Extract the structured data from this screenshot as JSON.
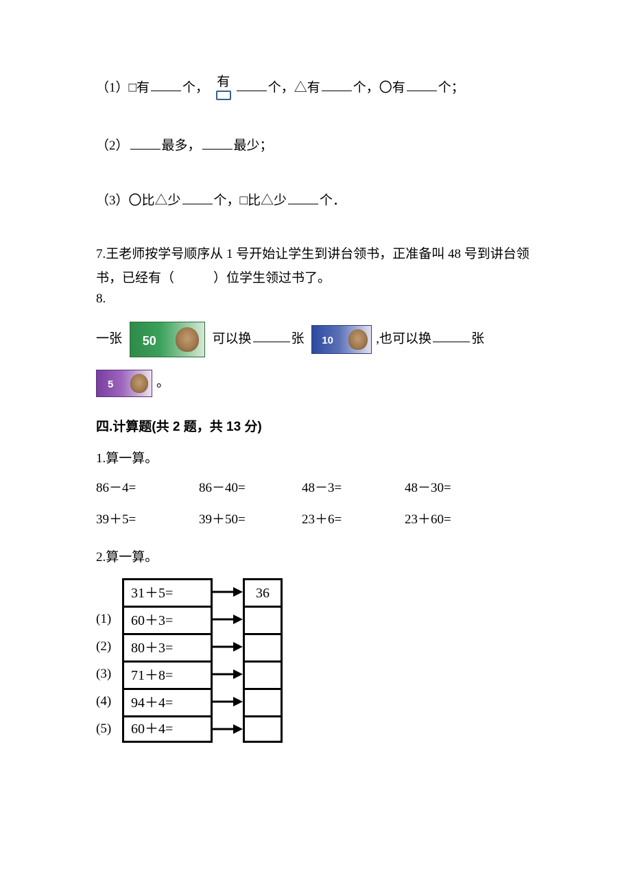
{
  "q6": {
    "line1_prefix": "（1）□有",
    "line1_mid1": "个，",
    "line1_mid2": "有",
    "line1_mid3": "个，△有",
    "line1_mid4": "个，〇有",
    "line1_suffix": "个；",
    "line2_prefix": "（2）",
    "line2_mid": "最多，",
    "line2_suffix": "最少；",
    "line3_prefix": "（3）〇比△少",
    "line3_mid": "个，□比△少",
    "line3_suffix": "个．"
  },
  "q7": {
    "text_a": "7.王老师按学号顺序从 1 号开始让学生到讲台领书，正准备叫 48 号到讲台领",
    "text_b": "书，已经有（　　　）位学生领过书了。"
  },
  "q8": {
    "label": "8.",
    "line1_a": "一张",
    "line1_b": "可以换",
    "line1_c": "张",
    "line1_d": ",也可以换",
    "line1_e": "张",
    "line2_end": "。"
  },
  "section4": {
    "title": "四.计算题(共 2 题，共 13 分)",
    "q1_label": "1.算一算。",
    "q1_rows": [
      [
        "86－4=",
        "86－40=",
        "48－3=",
        "48－30="
      ],
      [
        "39＋5=",
        "39＋50=",
        "23＋6=",
        "23＋60="
      ]
    ],
    "q2_label": "2.算一算。",
    "q2_items": [
      {
        "idx": "",
        "expr": "31＋5=",
        "ans": "36"
      },
      {
        "idx": "(1)",
        "expr": "60＋3=",
        "ans": ""
      },
      {
        "idx": "(2)",
        "expr": "80＋3=",
        "ans": ""
      },
      {
        "idx": "(3)",
        "expr": "71＋8=",
        "ans": ""
      },
      {
        "idx": "(4)",
        "expr": "94＋4=",
        "ans": ""
      },
      {
        "idx": "(5)",
        "expr": "60＋4=",
        "ans": ""
      }
    ]
  }
}
